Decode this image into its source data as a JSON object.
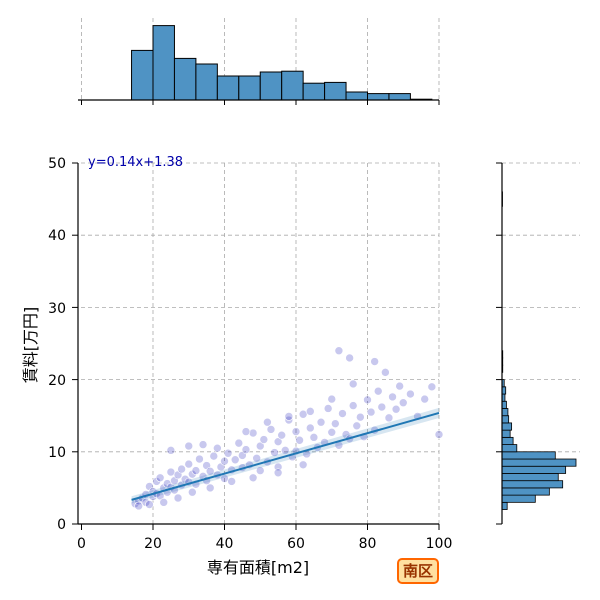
{
  "chart_data": {
    "type": "scatter",
    "xlabel": "専有面積[m2]",
    "ylabel": "賃料[万円]",
    "xlim": [
      0,
      100
    ],
    "ylim": [
      0,
      50
    ],
    "x_ticks": [
      0,
      20,
      40,
      60,
      80,
      100
    ],
    "y_ticks": [
      0,
      10,
      20,
      30,
      40,
      50
    ],
    "grid": true,
    "regression": {
      "label": "y=0.14x+1.38",
      "slope": 0.14,
      "intercept": 1.38,
      "x_range": [
        14,
        100
      ]
    },
    "badge": "南区",
    "colors": {
      "points": "#2222bb",
      "line": "#1f77b4",
      "hist": "#4f93c4",
      "equation": "#0000aa"
    },
    "x_histogram": {
      "bins": [
        [
          14,
          20,
          0.62
        ],
        [
          20,
          26,
          0.93
        ],
        [
          26,
          32,
          0.52
        ],
        [
          32,
          38,
          0.45
        ],
        [
          38,
          44,
          0.3
        ],
        [
          44,
          50,
          0.3
        ],
        [
          50,
          56,
          0.35
        ],
        [
          56,
          62,
          0.36
        ],
        [
          62,
          68,
          0.21
        ],
        [
          68,
          74,
          0.22
        ],
        [
          74,
          80,
          0.1
        ],
        [
          80,
          86,
          0.08
        ],
        [
          86,
          92,
          0.08
        ],
        [
          92,
          98,
          0.01
        ]
      ]
    },
    "y_histogram": {
      "bins": [
        [
          2,
          3,
          0.07
        ],
        [
          3,
          4,
          0.45
        ],
        [
          4,
          5,
          0.64
        ],
        [
          5,
          6,
          0.82
        ],
        [
          6,
          7,
          0.76
        ],
        [
          7,
          8,
          0.86
        ],
        [
          8,
          9,
          1.0
        ],
        [
          9,
          10,
          0.72
        ],
        [
          10,
          11,
          0.2
        ],
        [
          11,
          12,
          0.15
        ],
        [
          12,
          13,
          0.11
        ],
        [
          13,
          14,
          0.13
        ],
        [
          14,
          15,
          0.09
        ],
        [
          15,
          16,
          0.08
        ],
        [
          16,
          17,
          0.06
        ],
        [
          17,
          18,
          0.04
        ],
        [
          18,
          19,
          0.05
        ],
        [
          19,
          20,
          0.03
        ],
        [
          21,
          22,
          0.01
        ],
        [
          22,
          23,
          0.01
        ],
        [
          23,
          24,
          0.01
        ],
        [
          44,
          46,
          0.005
        ]
      ]
    },
    "points": [
      [
        15,
        2.8
      ],
      [
        16,
        3.2
      ],
      [
        17,
        3.6
      ],
      [
        18,
        4.1
      ],
      [
        18,
        3.0
      ],
      [
        19,
        5.2
      ],
      [
        20,
        4.5
      ],
      [
        20,
        3.8
      ],
      [
        21,
        5.9
      ],
      [
        21,
        4.2
      ],
      [
        22,
        6.4
      ],
      [
        22,
        3.9
      ],
      [
        23,
        5.0
      ],
      [
        24,
        5.6
      ],
      [
        24,
        4.4
      ],
      [
        25,
        7.2
      ],
      [
        25,
        5.1
      ],
      [
        26,
        6.0
      ],
      [
        26,
        4.7
      ],
      [
        27,
        6.8
      ],
      [
        28,
        5.4
      ],
      [
        28,
        7.6
      ],
      [
        29,
        6.2
      ],
      [
        30,
        5.8
      ],
      [
        30,
        8.3
      ],
      [
        31,
        6.9
      ],
      [
        32,
        7.4
      ],
      [
        32,
        5.5
      ],
      [
        33,
        9.0
      ],
      [
        34,
        6.6
      ],
      [
        35,
        8.1
      ],
      [
        35,
        6.0
      ],
      [
        36,
        7.3
      ],
      [
        37,
        9.4
      ],
      [
        38,
        6.8
      ],
      [
        38,
        10.5
      ],
      [
        39,
        7.9
      ],
      [
        40,
        8.7
      ],
      [
        40,
        6.3
      ],
      [
        41,
        9.8
      ],
      [
        42,
        7.5
      ],
      [
        43,
        8.9
      ],
      [
        44,
        11.2
      ],
      [
        45,
        7.8
      ],
      [
        45,
        9.5
      ],
      [
        46,
        10.3
      ],
      [
        47,
        8.2
      ],
      [
        48,
        12.6
      ],
      [
        49,
        9.1
      ],
      [
        50,
        7.4
      ],
      [
        50,
        10.8
      ],
      [
        51,
        11.7
      ],
      [
        52,
        8.6
      ],
      [
        53,
        13.1
      ],
      [
        54,
        9.9
      ],
      [
        55,
        11.4
      ],
      [
        55,
        7.9
      ],
      [
        56,
        12.3
      ],
      [
        57,
        10.2
      ],
      [
        58,
        14.4
      ],
      [
        59,
        9.3
      ],
      [
        60,
        12.8
      ],
      [
        60,
        10.1
      ],
      [
        61,
        11.6
      ],
      [
        62,
        15.2
      ],
      [
        63,
        9.7
      ],
      [
        64,
        13.3
      ],
      [
        65,
        12.0
      ],
      [
        66,
        10.6
      ],
      [
        67,
        14.1
      ],
      [
        68,
        11.3
      ],
      [
        69,
        16.0
      ],
      [
        70,
        12.7
      ],
      [
        71,
        13.9
      ],
      [
        72,
        10.9
      ],
      [
        73,
        15.3
      ],
      [
        74,
        12.4
      ],
      [
        75,
        11.8
      ],
      [
        76,
        16.4
      ],
      [
        77,
        13.6
      ],
      [
        78,
        14.8
      ],
      [
        79,
        12.1
      ],
      [
        80,
        17.2
      ],
      [
        81,
        15.5
      ],
      [
        82,
        13.0
      ],
      [
        83,
        18.4
      ],
      [
        84,
        16.2
      ],
      [
        86,
        14.7
      ],
      [
        87,
        17.6
      ],
      [
        88,
        15.9
      ],
      [
        89,
        19.1
      ],
      [
        90,
        16.8
      ],
      [
        92,
        18.0
      ],
      [
        94,
        14.9
      ],
      [
        96,
        17.3
      ],
      [
        98,
        19.0
      ],
      [
        100,
        12.4
      ],
      [
        72,
        24.0
      ],
      [
        75,
        23.0
      ],
      [
        82,
        22.5
      ],
      [
        25,
        10.2
      ],
      [
        30,
        10.8
      ],
      [
        34,
        11.0
      ],
      [
        46,
        12.8
      ],
      [
        52,
        14.1
      ],
      [
        58,
        14.9
      ],
      [
        64,
        15.6
      ],
      [
        70,
        17.3
      ],
      [
        76,
        19.4
      ],
      [
        85,
        21.0
      ],
      [
        16,
        2.5
      ],
      [
        19,
        2.7
      ],
      [
        23,
        3.0
      ],
      [
        27,
        3.6
      ],
      [
        31,
        4.4
      ],
      [
        36,
        5.0
      ],
      [
        42,
        5.9
      ],
      [
        48,
        6.4
      ],
      [
        55,
        7.1
      ],
      [
        62,
        8.2
      ]
    ]
  }
}
